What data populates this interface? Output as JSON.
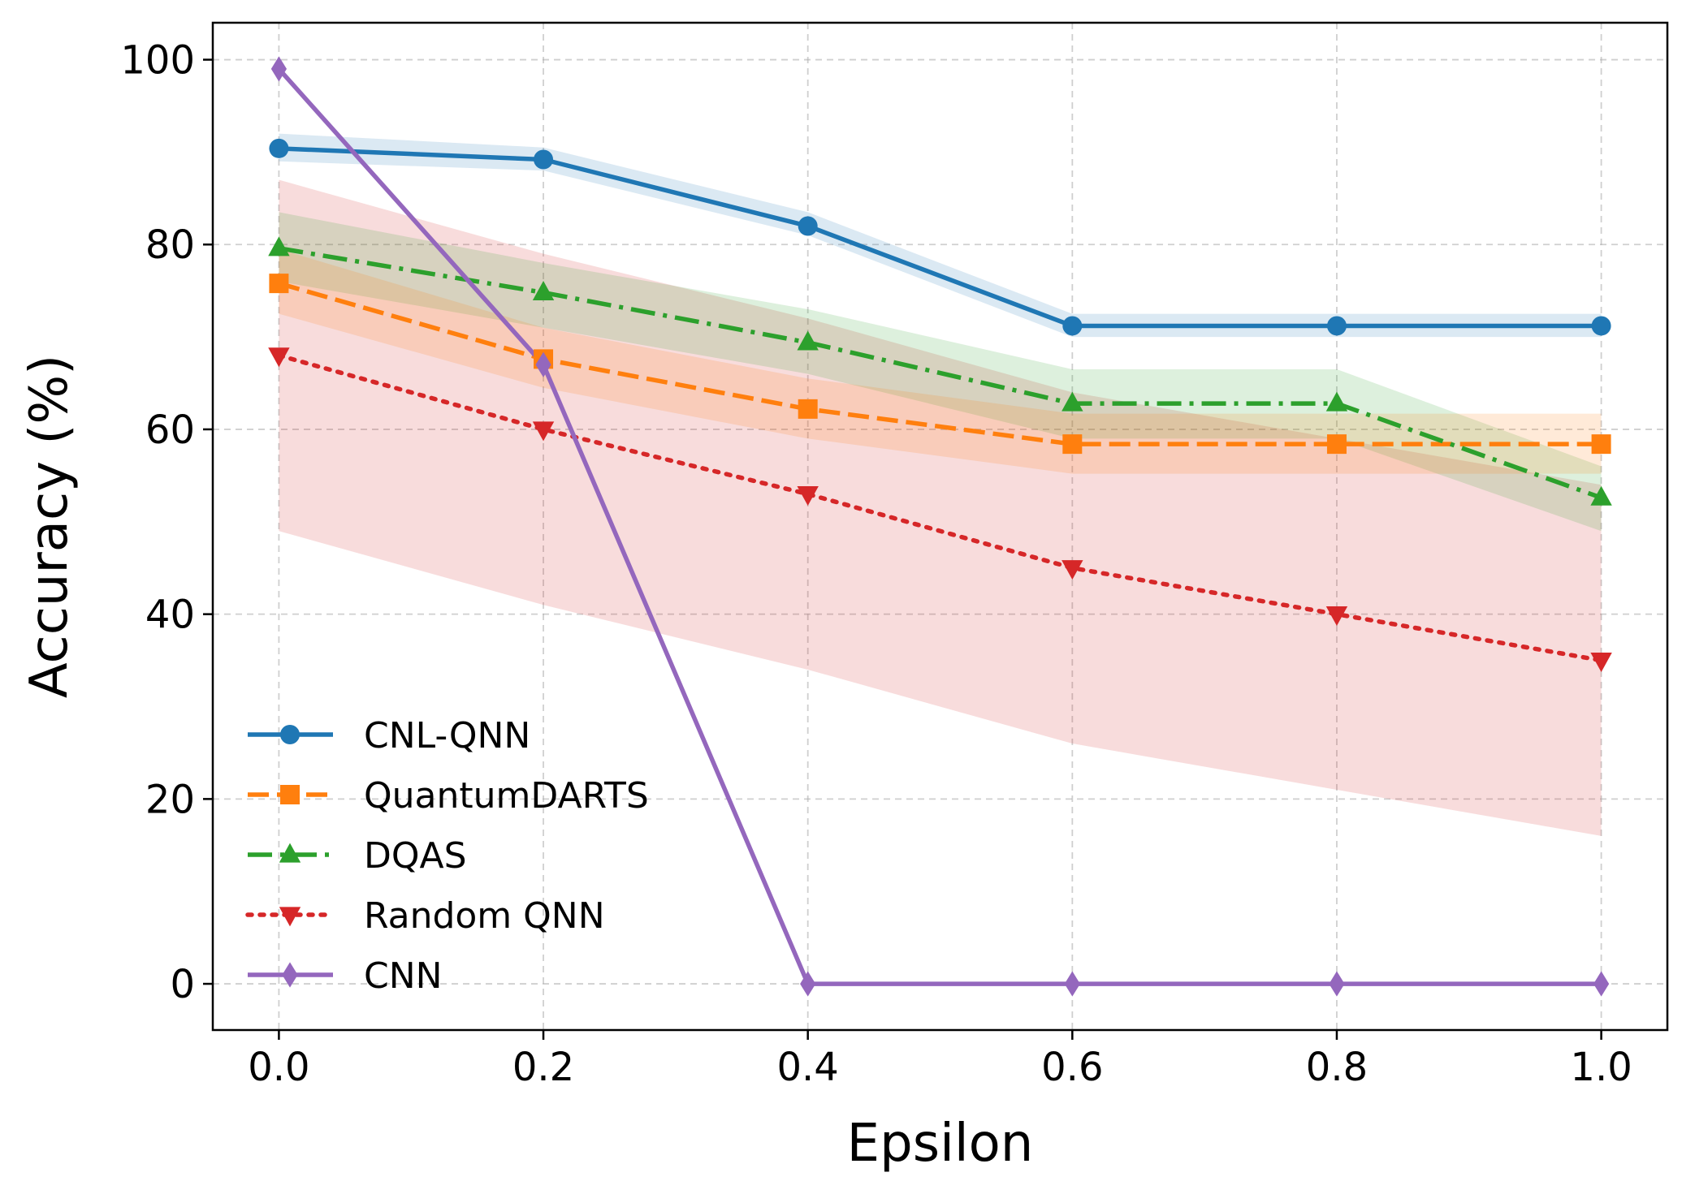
{
  "chart_data": {
    "type": "line",
    "title": "",
    "xlabel": "Epsilon",
    "ylabel": "Accuracy (%)",
    "xlim": [
      -0.05,
      1.05
    ],
    "ylim": [
      -5,
      104
    ],
    "xticks": [
      "0.0",
      "0.2",
      "0.4",
      "0.6",
      "0.8",
      "1.0"
    ],
    "yticks": [
      "0",
      "20",
      "40",
      "60",
      "80",
      "100"
    ],
    "grid": true,
    "legend_position": "lower-left",
    "x": [
      0.0,
      0.2,
      0.4,
      0.6,
      0.8,
      1.0
    ],
    "series": [
      {
        "name": "CNL-QNN",
        "color": "#1f77b4",
        "marker": "circle",
        "linestyle": "solid",
        "values": [
          90.4,
          89.2,
          82.0,
          71.2,
          71.2,
          71.2
        ],
        "band_lower": [
          89.0,
          88.0,
          81.0,
          70.0,
          70.0,
          70.0
        ],
        "band_upper": [
          92.0,
          90.5,
          83.5,
          72.5,
          72.5,
          72.5
        ]
      },
      {
        "name": "QuantumDARTS",
        "color": "#ff7f0e",
        "marker": "square",
        "linestyle": "dashed",
        "values": [
          75.8,
          67.6,
          62.2,
          58.4,
          58.4,
          58.4
        ],
        "band_lower": [
          72.5,
          64.5,
          59.0,
          55.2,
          55.2,
          55.2
        ],
        "band_upper": [
          79.5,
          71.0,
          65.5,
          61.7,
          61.7,
          61.7
        ]
      },
      {
        "name": "DQAS",
        "color": "#2ca02c",
        "marker": "triangle-up",
        "linestyle": "dashdot",
        "values": [
          79.6,
          74.8,
          69.4,
          62.8,
          62.8,
          52.6
        ],
        "band_lower": [
          76.0,
          71.0,
          66.0,
          59.0,
          59.0,
          49.0
        ],
        "band_upper": [
          83.5,
          78.0,
          73.0,
          66.5,
          66.5,
          56.0
        ]
      },
      {
        "name": "Random QNN",
        "color": "#d62728",
        "marker": "triangle-down",
        "linestyle": "dotted",
        "values": [
          68.0,
          60.0,
          53.0,
          45.0,
          40.0,
          35.0
        ],
        "band_lower": [
          49.0,
          41.0,
          34.0,
          26.0,
          21.0,
          16.0
        ],
        "band_upper": [
          87.0,
          79.0,
          72.0,
          64.0,
          59.0,
          54.0
        ]
      },
      {
        "name": "CNN",
        "color": "#9467bd",
        "marker": "diamond",
        "linestyle": "solid",
        "values": [
          99.0,
          67.0,
          0.0,
          0.0,
          0.0,
          0.0
        ]
      }
    ]
  }
}
